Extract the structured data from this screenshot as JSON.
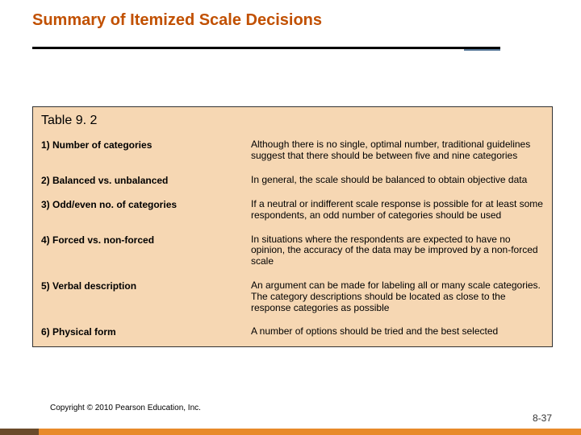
{
  "title": "Summary of Itemized Scale Decisions",
  "table": {
    "caption": "Table 9. 2",
    "background_color": "#f6d7b3",
    "rows": [
      {
        "label": "1) Number of categories",
        "desc": "Although there is no single, optimal number, traditional guidelines suggest that there should be between five and nine categories"
      },
      {
        "label": "2) Balanced vs. unbalanced",
        "desc": "In general, the scale should be balanced to obtain objective data"
      },
      {
        "label": "3) Odd/even no. of categories",
        "desc": "If a neutral or indifferent scale response is possible for at least some respondents, an odd number of categories should be used"
      },
      {
        "label": "4) Forced vs. non-forced",
        "desc": "In situations where the respondents are expected to have no opinion, the accuracy of the data may be improved by a non-forced scale"
      },
      {
        "label": "5) Verbal description",
        "desc": "An argument can be made for labeling all or many scale categories. The category descriptions should be located as close to the response categories as possible"
      },
      {
        "label": "6) Physical form",
        "desc": "A number of options should be tried and the best selected"
      }
    ]
  },
  "copyright": "Copyright © 2010 Pearson Education, Inc.",
  "page_number": "8-37",
  "colors": {
    "title": "#c15000",
    "underline": "#000000",
    "underline_accent": "#5a7a9a",
    "bottom_bar": "#e88a2a",
    "bottom_bar_dark": "#6a4a2a"
  },
  "fonts": {
    "title_size": 20,
    "caption_size": 16,
    "body_size": 12,
    "copyright_size": 10
  }
}
